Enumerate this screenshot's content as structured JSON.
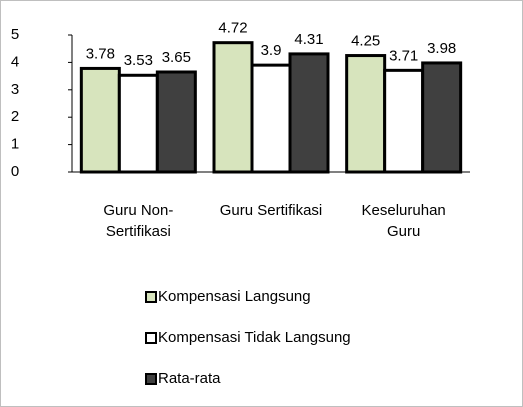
{
  "chart_data": {
    "type": "bar",
    "categories": [
      "Guru Non-\nSertifikasi",
      "Guru Sertifikasi",
      "Keseluruhan\nGuru"
    ],
    "series": [
      {
        "name": "Kompensasi Langsung",
        "color": "#d7e4bd",
        "values": [
          3.78,
          4.72,
          4.25
        ]
      },
      {
        "name": "Kompensasi Tidak Langsung",
        "color": "#ffffff",
        "values": [
          3.53,
          3.9,
          3.71
        ]
      },
      {
        "name": "Rata-rata",
        "color": "#404040",
        "values": [
          3.65,
          4.31,
          3.98
        ]
      }
    ],
    "ylim": [
      0,
      5
    ],
    "yticks": [
      0,
      1,
      2,
      3,
      4,
      5
    ],
    "grid": false,
    "legend": "bottom"
  }
}
